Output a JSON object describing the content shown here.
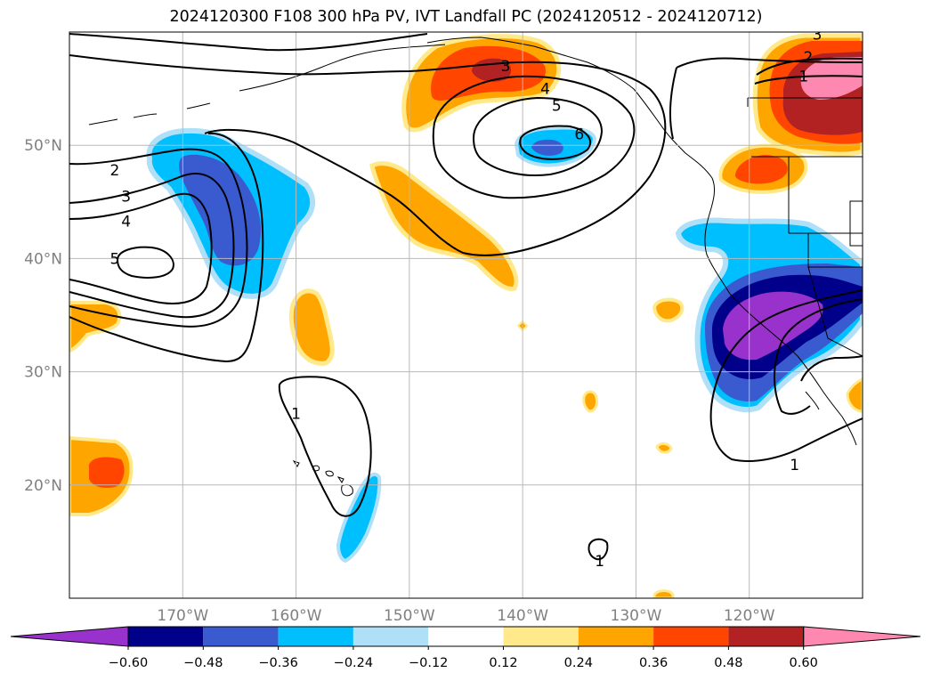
{
  "title": "2024120300 F108 300 hPa PV, IVT Landfall PC (2024120512 - 2024120712)",
  "chart_data": {
    "type": "map",
    "projection": "PlateCarree",
    "extent": {
      "lon": [
        -180,
        -110
      ],
      "lat": [
        10,
        60
      ]
    },
    "grid": true,
    "lat_ticks": [
      {
        "value": 50,
        "label": "50°N"
      },
      {
        "value": 40,
        "label": "40°N"
      },
      {
        "value": 30,
        "label": "30°N"
      },
      {
        "value": 20,
        "label": "20°N"
      }
    ],
    "lon_ticks": [
      {
        "value": -170,
        "label": "170°W"
      },
      {
        "value": -160,
        "label": "160°W"
      },
      {
        "value": -150,
        "label": "150°W"
      },
      {
        "value": -140,
        "label": "140°W"
      },
      {
        "value": -130,
        "label": "130°W"
      },
      {
        "value": -120,
        "label": "120°W"
      }
    ],
    "colorbar": {
      "extend": "both",
      "levels": [
        -0.6,
        -0.48,
        -0.36,
        -0.24,
        -0.12,
        0.12,
        0.24,
        0.36,
        0.48,
        0.6
      ],
      "tick_labels": [
        "−0.60",
        "−0.48",
        "−0.36",
        "−0.24",
        "−0.12",
        "0.12",
        "0.24",
        "0.36",
        "0.48",
        "0.60"
      ],
      "colors": [
        "#9932cc",
        "#00008b",
        "#3a5bd0",
        "#00bfff",
        "#b0e0f8",
        "#ffffff",
        "#ffe98a",
        "#ffa500",
        "#ff4500",
        "#b22222",
        "#ff88b0"
      ]
    },
    "contour_labels": [
      {
        "text": "3",
        "lon": -141.5,
        "lat": 57
      },
      {
        "text": "4",
        "lon": -138,
        "lat": 55
      },
      {
        "text": "5",
        "lon": -137,
        "lat": 53.5
      },
      {
        "text": "6",
        "lon": -135,
        "lat": 51
      },
      {
        "text": "3",
        "lon": -114,
        "lat": 59.8
      },
      {
        "text": "2",
        "lon": -114.8,
        "lat": 57.8
      },
      {
        "text": "1",
        "lon": -115.2,
        "lat": 56.1
      },
      {
        "text": "2",
        "lon": -176,
        "lat": 47.8
      },
      {
        "text": "3",
        "lon": -175,
        "lat": 45.5
      },
      {
        "text": "4",
        "lon": -175,
        "lat": 43.3
      },
      {
        "text": "5",
        "lon": -176,
        "lat": 40
      },
      {
        "text": "1",
        "lon": -160,
        "lat": 26.3
      },
      {
        "text": "1",
        "lon": -116,
        "lat": 21.8
      },
      {
        "text": "1",
        "lon": -133.2,
        "lat": 13.3
      }
    ],
    "shaded_regions": [
      {
        "category": "0.36",
        "coords": [
          [
            -159.5,
            51.5
          ],
          [
            -151,
            52
          ],
          [
            -148.6,
            50.6
          ],
          [
            -144,
            50.4
          ],
          [
            -140.4,
            49.5
          ],
          [
            -139.2,
            51.4
          ],
          [
            -137,
            50.8
          ],
          [
            -135.8,
            49.8
          ],
          [
            -138.2,
            49.8
          ],
          [
            -139,
            48.4
          ],
          [
            -141.6,
            48.8
          ],
          [
            -147,
            50.2
          ],
          [
            -151,
            49.7
          ],
          [
            -157,
            49.4
          ],
          [
            -162,
            48.7
          ],
          [
            -165,
            47.8
          ],
          [
            -168,
            47.7
          ],
          [
            -170,
            47.7
          ],
          [
            -172,
            48.3
          ],
          [
            -172.4,
            49.2
          ],
          [
            -170.3,
            50
          ],
          [
            -167,
            50.5
          ],
          [
            -164,
            51
          ],
          [
            -162,
            51.2
          ]
        ]
      }
    ]
  }
}
